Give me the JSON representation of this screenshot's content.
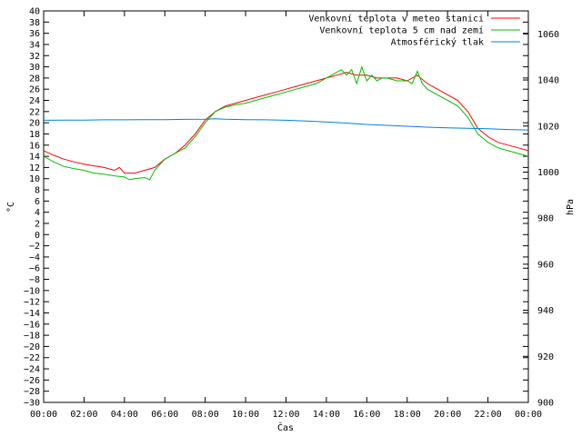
{
  "chart_data": {
    "type": "line",
    "xlabel": "Čas",
    "ylabel": "°C",
    "y2label": "hPa",
    "x_ticks": [
      "00:00",
      "02:00",
      "04:00",
      "06:00",
      "08:00",
      "10:00",
      "12:00",
      "14:00",
      "16:00",
      "18:00",
      "20:00",
      "22:00",
      "00:00"
    ],
    "xlim": [
      0,
      24
    ],
    "ylim": [
      -30,
      40
    ],
    "y2lim": [
      900,
      1070
    ],
    "y_tick_step": 2,
    "y2_ticks": [
      900,
      920,
      940,
      960,
      980,
      1000,
      1020,
      1040,
      1060
    ],
    "grid": false,
    "legend_position": "top-right",
    "series": [
      {
        "name": "Venkovní teplota v meteo stanici",
        "color": "#ff0000",
        "axis": "left",
        "x": [
          0,
          0.5,
          1,
          1.5,
          2,
          2.5,
          3,
          3.5,
          3.75,
          4,
          4.5,
          5,
          5.5,
          6,
          6.5,
          7,
          7.5,
          8,
          8.5,
          9,
          9.5,
          10,
          10.5,
          11,
          11.5,
          12,
          12.5,
          13,
          13.5,
          14,
          14.5,
          15,
          15.5,
          16,
          16.5,
          17,
          17.5,
          18,
          18.5,
          19,
          19.5,
          20,
          20.5,
          21,
          21.5,
          22,
          22.5,
          23,
          23.5,
          24
        ],
        "y": [
          15,
          14.2,
          13.5,
          13,
          12.6,
          12.3,
          12,
          11.5,
          12,
          11,
          11,
          11.5,
          12,
          13.5,
          14.5,
          16,
          18,
          20.5,
          22,
          23,
          23.5,
          24,
          24.5,
          25,
          25.5,
          26,
          26.5,
          27,
          27.5,
          28,
          28.5,
          29,
          28.5,
          28.5,
          28,
          28,
          28,
          27.5,
          28.5,
          27,
          26,
          25,
          24,
          22,
          19,
          17.5,
          16.5,
          16,
          15.5,
          15
        ]
      },
      {
        "name": "Venkovní teplota 5 cm nad zemí",
        "color": "#00c000",
        "axis": "left",
        "x": [
          0,
          0.5,
          1,
          1.5,
          2,
          2.5,
          3,
          3.5,
          4,
          4.25,
          4.5,
          5,
          5.25,
          5.5,
          5.75,
          6,
          6.5,
          7,
          7.5,
          8,
          8.5,
          9,
          9.5,
          10,
          10.5,
          11,
          11.5,
          12,
          12.5,
          13,
          13.5,
          14,
          14.25,
          14.5,
          14.75,
          15,
          15.25,
          15.5,
          15.75,
          16,
          16.25,
          16.5,
          16.75,
          17,
          17.5,
          18,
          18.25,
          18.5,
          18.75,
          19,
          19.5,
          20,
          20.5,
          21,
          21.5,
          22,
          22.5,
          23,
          23.5,
          24
        ],
        "y": [
          14,
          13,
          12.2,
          11.8,
          11.5,
          11,
          10.8,
          10.5,
          10.3,
          9.8,
          10,
          10.2,
          9.8,
          11.5,
          12.5,
          13.5,
          14.5,
          15.5,
          17.5,
          20,
          22,
          22.8,
          23.2,
          23.5,
          24,
          24.5,
          25,
          25.5,
          26,
          26.5,
          27,
          28,
          28.5,
          29,
          29.5,
          28.5,
          29.5,
          27,
          30,
          27.5,
          28.5,
          27.5,
          28,
          28,
          27.5,
          27.5,
          27,
          29.2,
          27,
          26,
          25,
          24,
          23,
          21,
          18,
          16.5,
          15.5,
          15,
          14.5,
          14
        ]
      },
      {
        "name": "Atmosférický tlak",
        "color": "#0080e0",
        "axis": "right",
        "x": [
          0,
          1,
          2,
          3,
          4,
          5,
          6,
          7,
          8,
          8.5,
          9,
          10,
          11,
          12,
          13,
          14,
          15,
          16,
          17,
          18,
          19,
          20,
          21,
          22,
          23,
          24
        ],
        "y": [
          1022.5,
          1022.6,
          1022.6,
          1022.7,
          1022.7,
          1022.8,
          1022.8,
          1022.9,
          1023,
          1023.2,
          1023,
          1022.8,
          1022.7,
          1022.5,
          1022.2,
          1021.8,
          1021.3,
          1020.7,
          1020.3,
          1019.9,
          1019.5,
          1019.2,
          1019,
          1018.8,
          1018.5,
          1018.3
        ]
      }
    ]
  }
}
